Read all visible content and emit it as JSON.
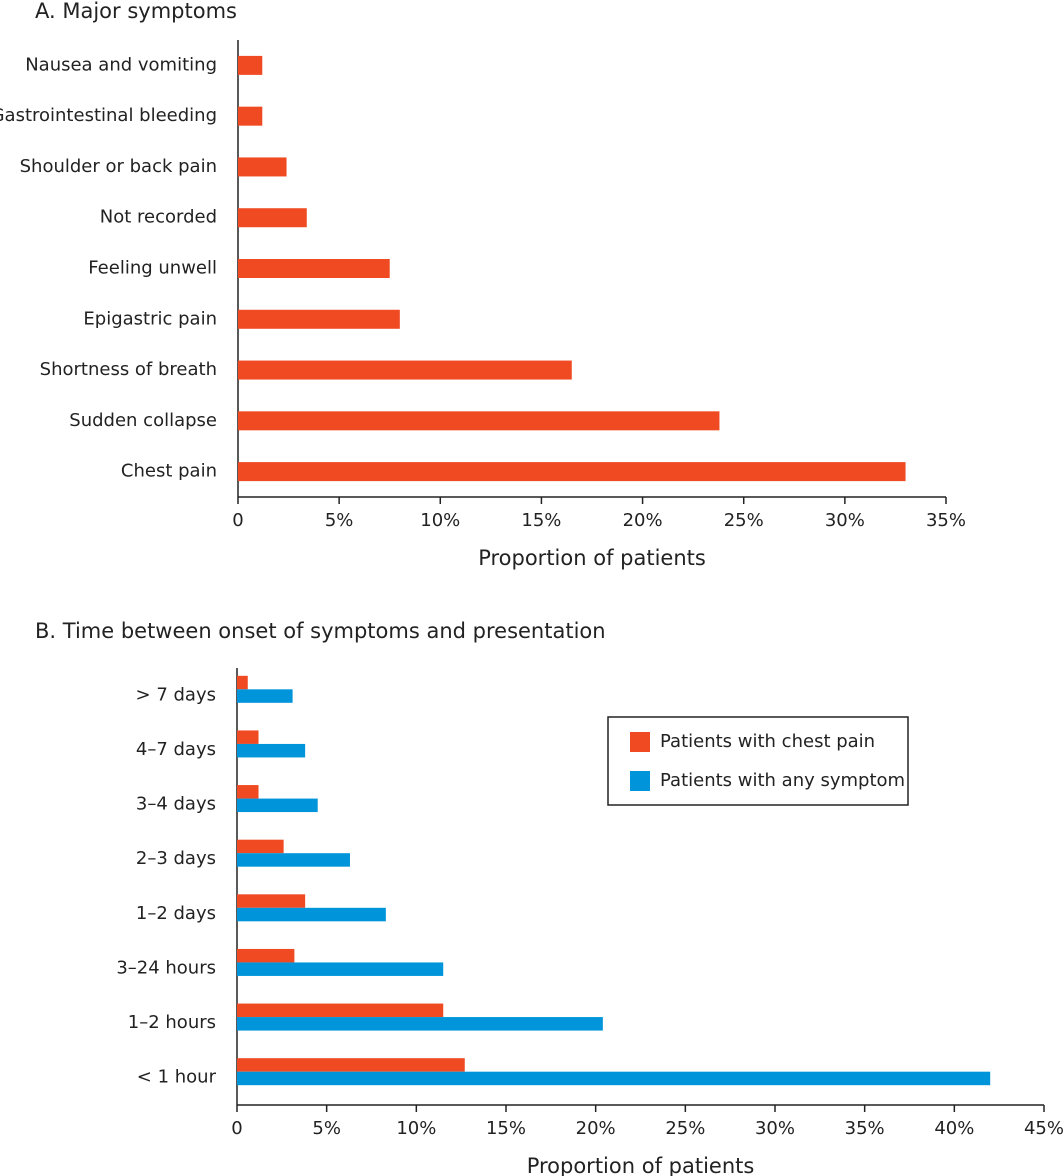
{
  "chart_data": [
    {
      "type": "barh",
      "title": "A. Major symptoms",
      "xlabel": "Proportion of patients",
      "categories": [
        "Nausea and vomiting",
        "Gastrointestinal bleeding",
        "Shoulder or back pain",
        "Not recorded",
        "Feeling unwell",
        "Epigastric pain",
        "Shortness of breath",
        "Sudden collapse",
        "Chest pain"
      ],
      "series": [
        {
          "color": "#f04a23",
          "values": [
            1.2,
            1.2,
            2.4,
            3.4,
            7.5,
            8.0,
            16.5,
            23.8,
            33.0
          ]
        }
      ],
      "xlim": [
        0,
        35
      ],
      "xticks": [
        0,
        {
          "value": 5,
          "label": "5%"
        },
        {
          "value": 10,
          "label": "10%"
        },
        {
          "value": 15,
          "label": "15%"
        },
        {
          "value": 20,
          "label": "20%"
        },
        {
          "value": 25,
          "label": "25%"
        },
        {
          "value": 30,
          "label": "30%"
        },
        {
          "value": 35,
          "label": "35%"
        }
      ],
      "grid": false
    },
    {
      "type": "barh",
      "title": "B. Time between onset of symptoms and presentation",
      "xlabel": "Proportion of patients",
      "categories": [
        "> 7 days",
        "4–7 days",
        "3–4 days",
        "2–3 days",
        "1–2 days",
        "3–24 hours",
        "1–2 hours",
        "< 1 hour"
      ],
      "series": [
        {
          "name": "Patients with chest pain",
          "color": "#f04a23",
          "values": [
            0.6,
            1.2,
            1.2,
            2.6,
            3.8,
            3.2,
            11.5,
            12.7
          ]
        },
        {
          "name": "Patients with any symptom",
          "color": "#0095da",
          "values": [
            3.1,
            3.8,
            4.5,
            6.3,
            8.3,
            11.5,
            20.4,
            42.0
          ]
        }
      ],
      "xlim": [
        0,
        45
      ],
      "xticks": [
        0,
        {
          "value": 5,
          "label": "5%"
        },
        {
          "value": 10,
          "label": "10%"
        },
        {
          "value": 15,
          "label": "15%"
        },
        {
          "value": 20,
          "label": "20%"
        },
        {
          "value": 25,
          "label": "25%"
        },
        {
          "value": 30,
          "label": "30%"
        },
        {
          "value": 35,
          "label": "35%"
        },
        {
          "value": 40,
          "label": "40%"
        },
        {
          "value": 45,
          "label": "45%"
        }
      ],
      "legend": "upper right",
      "grid": false
    }
  ]
}
